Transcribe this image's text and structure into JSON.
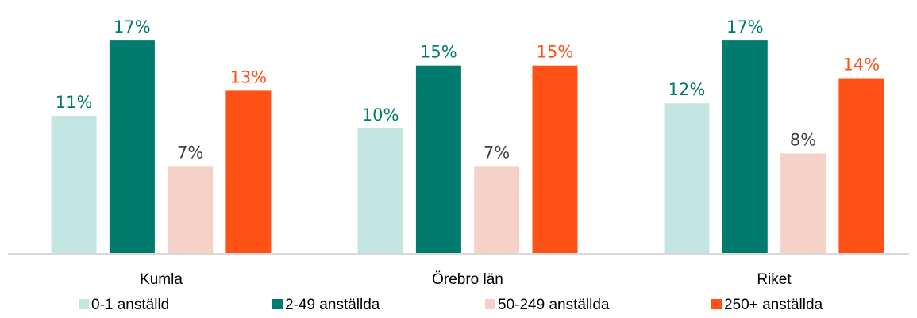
{
  "chart_data": {
    "type": "bar",
    "categories": [
      "Kumla",
      "Örebro län",
      "Riket"
    ],
    "series": [
      {
        "name": "0-1 anställd",
        "values": [
          11,
          10,
          12
        ],
        "labels": [
          "11%",
          "10%",
          "12%"
        ],
        "color": "#c3e6e2",
        "label_color": "#007b6e"
      },
      {
        "name": "2-49 anställda",
        "values": [
          17,
          15,
          17
        ],
        "labels": [
          "17%",
          "15%",
          "17%"
        ],
        "color": "#007b6e",
        "label_color": "#007b6e"
      },
      {
        "name": "50-249 anställda",
        "values": [
          7,
          7,
          8
        ],
        "labels": [
          "7%",
          "7%",
          "8%"
        ],
        "color": "#f5d1c8",
        "label_color": "#404040"
      },
      {
        "name": "250+ anställda",
        "values": [
          13,
          15,
          14
        ],
        "labels": [
          "13%",
          "15%",
          "14%"
        ],
        "color": "#ff5216",
        "label_color": "#ff5216"
      }
    ],
    "ylim": [
      0,
      17.7
    ],
    "grid": false,
    "legend_position": "bottom",
    "axis_color": "#d9d9d9"
  }
}
